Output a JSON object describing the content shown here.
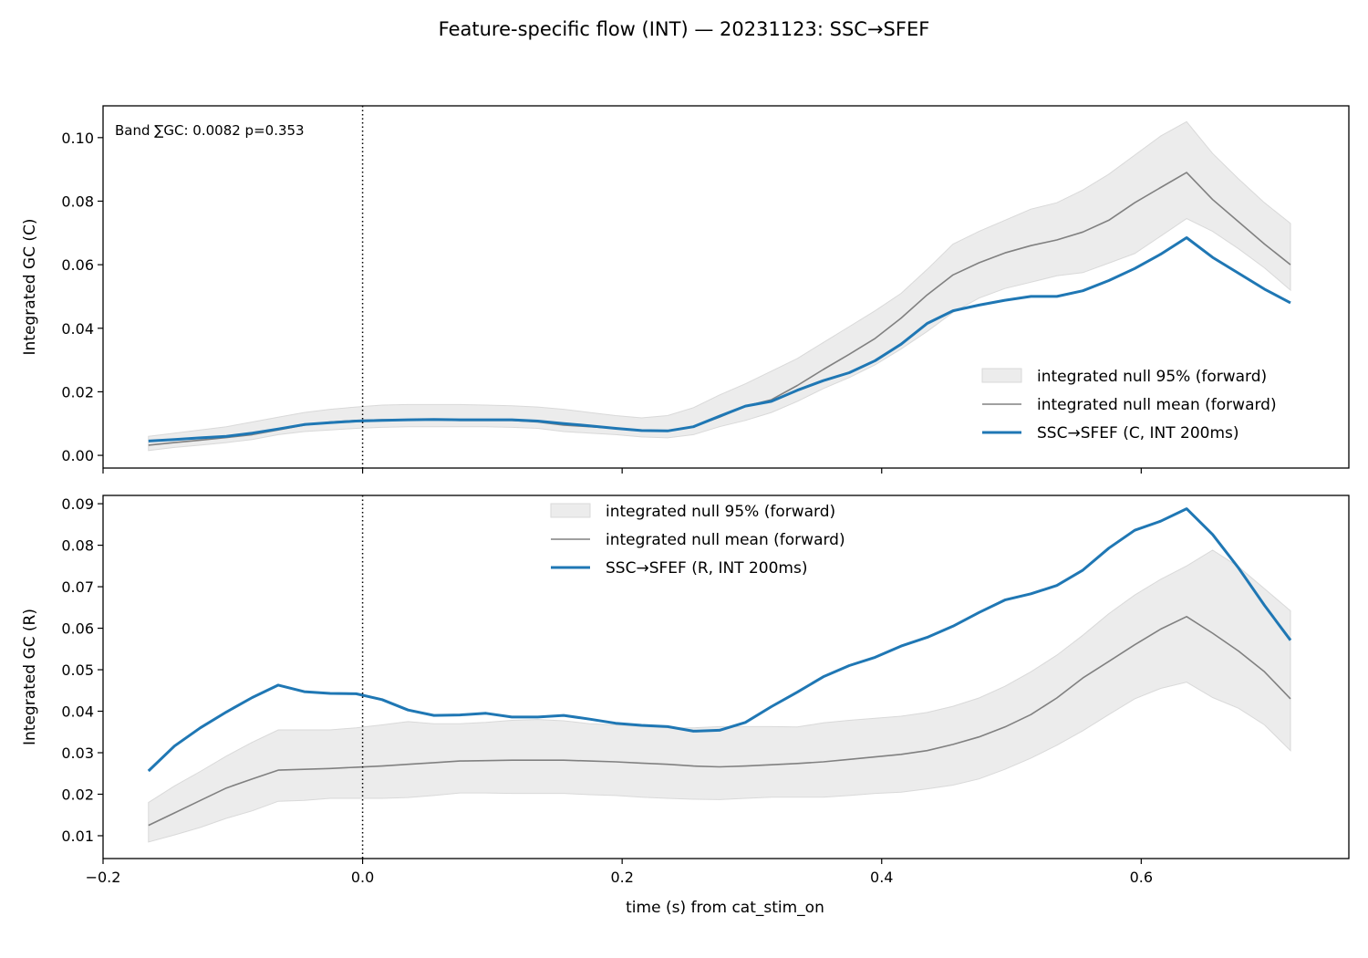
{
  "figure": {
    "title": "Feature-specific flow (INT) — 20231123: SSC→SFEF",
    "xlabel": "time (s) from cat_stim_on"
  },
  "colors": {
    "observed": "#1f77b4",
    "null_mean": "#808080",
    "null_band": "#d9d9d9"
  },
  "chart_data": [
    {
      "type": "line",
      "ylabel": "Integrated GC (C)",
      "annotation": "Band ∑GC: 0.0082  p=0.353",
      "legend_position": "lower-right",
      "xlim": [
        -0.2,
        0.76
      ],
      "ylim": [
        -0.004,
        0.11
      ],
      "x_ticks": [
        -0.2,
        0.0,
        0.2,
        0.4,
        0.6
      ],
      "x_tick_labels": [
        "",
        "",
        "",
        "",
        ""
      ],
      "y_ticks": [
        0.0,
        0.02,
        0.04,
        0.06,
        0.08,
        0.1
      ],
      "y_tick_labels": [
        "0.00",
        "0.02",
        "0.04",
        "0.06",
        "0.08",
        "0.10"
      ],
      "vline_x": 0.0,
      "x": [
        -0.165,
        -0.145,
        -0.125,
        -0.105,
        -0.085,
        -0.065,
        -0.045,
        -0.025,
        -0.005,
        0.015,
        0.035,
        0.055,
        0.075,
        0.095,
        0.115,
        0.135,
        0.155,
        0.175,
        0.195,
        0.215,
        0.235,
        0.255,
        0.275,
        0.295,
        0.315,
        0.335,
        0.355,
        0.375,
        0.395,
        0.415,
        0.435,
        0.455,
        0.475,
        0.495,
        0.515,
        0.535,
        0.555,
        0.575,
        0.595,
        0.615,
        0.635,
        0.655,
        0.675,
        0.695,
        0.715
      ],
      "series": [
        {
          "name": "integrated null 95% (forward)",
          "kind": "band",
          "lower": [
            0.0015,
            0.0025,
            0.0032,
            0.004,
            0.005,
            0.0065,
            0.0075,
            0.008,
            0.0085,
            0.0088,
            0.009,
            0.009,
            0.009,
            0.009,
            0.0088,
            0.0085,
            0.0075,
            0.007,
            0.0065,
            0.0058,
            0.0055,
            0.0065,
            0.009,
            0.011,
            0.0135,
            0.017,
            0.021,
            0.0245,
            0.0285,
            0.0335,
            0.039,
            0.045,
            0.0495,
            0.0525,
            0.0545,
            0.0565,
            0.0575,
            0.0605,
            0.0635,
            0.069,
            0.0745,
            0.0705,
            0.065,
            0.059,
            0.052
          ],
          "upper": [
            0.006,
            0.007,
            0.008,
            0.009,
            0.0105,
            0.012,
            0.0135,
            0.0145,
            0.0152,
            0.0158,
            0.016,
            0.016,
            0.016,
            0.0158,
            0.0156,
            0.0152,
            0.0145,
            0.0135,
            0.0125,
            0.0118,
            0.0125,
            0.015,
            0.019,
            0.0225,
            0.0265,
            0.0305,
            0.0355,
            0.0405,
            0.0455,
            0.051,
            0.0585,
            0.0665,
            0.0705,
            0.074,
            0.0775,
            0.0795,
            0.0835,
            0.0885,
            0.0945,
            0.1005,
            0.105,
            0.095,
            0.087,
            0.0795,
            0.073
          ]
        },
        {
          "name": "integrated null mean (forward)",
          "kind": "line",
          "values": [
            0.0032,
            0.004,
            0.0048,
            0.0056,
            0.0065,
            0.008,
            0.0095,
            0.0105,
            0.011,
            0.0112,
            0.0112,
            0.0112,
            0.011,
            0.011,
            0.011,
            0.0105,
            0.0095,
            0.009,
            0.0085,
            0.0078,
            0.0078,
            0.009,
            0.012,
            0.0155,
            0.0175,
            0.022,
            0.027,
            0.0318,
            0.0368,
            0.0432,
            0.0505,
            0.0568,
            0.0606,
            0.0637,
            0.066,
            0.0678,
            0.0703,
            0.074,
            0.0795,
            0.0843,
            0.089,
            0.0805,
            0.0735,
            0.0665,
            0.06
          ]
        },
        {
          "name": "SSC→SFEF (C, INT 200ms)",
          "kind": "line",
          "values": [
            0.0045,
            0.005,
            0.0055,
            0.006,
            0.007,
            0.0083,
            0.0097,
            0.0103,
            0.0108,
            0.011,
            0.0112,
            0.0113,
            0.0112,
            0.0112,
            0.0112,
            0.0108,
            0.01,
            0.0093,
            0.0085,
            0.0078,
            0.0077,
            0.009,
            0.0123,
            0.0155,
            0.017,
            0.0205,
            0.0235,
            0.026,
            0.0298,
            0.035,
            0.0415,
            0.0455,
            0.0473,
            0.0488,
            0.05,
            0.05,
            0.0518,
            0.055,
            0.0588,
            0.0633,
            0.0685,
            0.0623,
            0.0573,
            0.0523,
            0.048
          ]
        }
      ]
    },
    {
      "type": "line",
      "ylabel": "Integrated GC (R)",
      "legend_position": "upper-center",
      "xlim": [
        -0.2,
        0.76
      ],
      "ylim": [
        0.0045,
        0.092
      ],
      "x_ticks": [
        -0.2,
        0.0,
        0.2,
        0.4,
        0.6
      ],
      "x_tick_labels": [
        "−0.2",
        "0.0",
        "0.2",
        "0.4",
        "0.6"
      ],
      "y_ticks": [
        0.01,
        0.02,
        0.03,
        0.04,
        0.05,
        0.06,
        0.07,
        0.08,
        0.09
      ],
      "y_tick_labels": [
        "0.01",
        "0.02",
        "0.03",
        "0.04",
        "0.05",
        "0.06",
        "0.07",
        "0.08",
        "0.09"
      ],
      "vline_x": 0.0,
      "x": [
        -0.165,
        -0.145,
        -0.125,
        -0.105,
        -0.085,
        -0.065,
        -0.045,
        -0.025,
        -0.005,
        0.015,
        0.035,
        0.055,
        0.075,
        0.095,
        0.115,
        0.135,
        0.155,
        0.175,
        0.195,
        0.215,
        0.235,
        0.255,
        0.275,
        0.295,
        0.315,
        0.335,
        0.355,
        0.375,
        0.395,
        0.415,
        0.435,
        0.455,
        0.475,
        0.495,
        0.515,
        0.535,
        0.555,
        0.575,
        0.595,
        0.615,
        0.635,
        0.655,
        0.675,
        0.695,
        0.715
      ],
      "series": [
        {
          "name": "integrated null 95% (forward)",
          "kind": "band",
          "lower": [
            0.0085,
            0.0102,
            0.012,
            0.0142,
            0.016,
            0.0183,
            0.0185,
            0.019,
            0.019,
            0.019,
            0.0192,
            0.0197,
            0.0203,
            0.0203,
            0.0202,
            0.0202,
            0.0202,
            0.0199,
            0.0197,
            0.0193,
            0.019,
            0.0188,
            0.0187,
            0.019,
            0.0193,
            0.0193,
            0.0193,
            0.0197,
            0.0202,
            0.0205,
            0.0213,
            0.0222,
            0.0237,
            0.026,
            0.0287,
            0.0318,
            0.0353,
            0.0392,
            0.043,
            0.0455,
            0.047,
            0.0433,
            0.0407,
            0.0367,
            0.0305
          ],
          "upper": [
            0.018,
            0.022,
            0.0255,
            0.0292,
            0.0325,
            0.0355,
            0.0355,
            0.0355,
            0.036,
            0.0367,
            0.0375,
            0.037,
            0.037,
            0.0373,
            0.0378,
            0.038,
            0.0377,
            0.037,
            0.0367,
            0.0363,
            0.036,
            0.036,
            0.0363,
            0.0363,
            0.0363,
            0.0362,
            0.0372,
            0.0378,
            0.0383,
            0.0388,
            0.0397,
            0.0412,
            0.0432,
            0.046,
            0.0495,
            0.0535,
            0.0583,
            0.0635,
            0.068,
            0.0718,
            0.075,
            0.0788,
            0.0748,
            0.0695,
            0.0642
          ]
        },
        {
          "name": "integrated null mean (forward)",
          "kind": "line",
          "values": [
            0.0125,
            0.0155,
            0.0185,
            0.0215,
            0.0237,
            0.0258,
            0.026,
            0.0262,
            0.0265,
            0.0268,
            0.0272,
            0.0276,
            0.028,
            0.0281,
            0.0282,
            0.0282,
            0.0282,
            0.028,
            0.0278,
            0.0275,
            0.0272,
            0.0268,
            0.0266,
            0.0268,
            0.0271,
            0.0274,
            0.0278,
            0.0284,
            0.029,
            0.0296,
            0.0305,
            0.032,
            0.0338,
            0.0362,
            0.0392,
            0.0432,
            0.048,
            0.052,
            0.056,
            0.0598,
            0.0628,
            0.0588,
            0.0545,
            0.0495,
            0.043
          ]
        },
        {
          "name": "SSC→SFEF (R, INT 200ms)",
          "kind": "line",
          "values": [
            0.0256,
            0.0316,
            0.036,
            0.0398,
            0.0433,
            0.0463,
            0.0447,
            0.0443,
            0.0442,
            0.0428,
            0.0403,
            0.039,
            0.0391,
            0.0395,
            0.0386,
            0.0386,
            0.039,
            0.0381,
            0.0371,
            0.0366,
            0.0363,
            0.0352,
            0.0354,
            0.0373,
            0.0411,
            0.0446,
            0.0483,
            0.051,
            0.053,
            0.0557,
            0.0578,
            0.0605,
            0.0638,
            0.0668,
            0.0683,
            0.0703,
            0.074,
            0.0793,
            0.0836,
            0.0858,
            0.0888,
            0.0826,
            0.0745,
            0.0655,
            0.0571
          ]
        }
      ]
    }
  ]
}
